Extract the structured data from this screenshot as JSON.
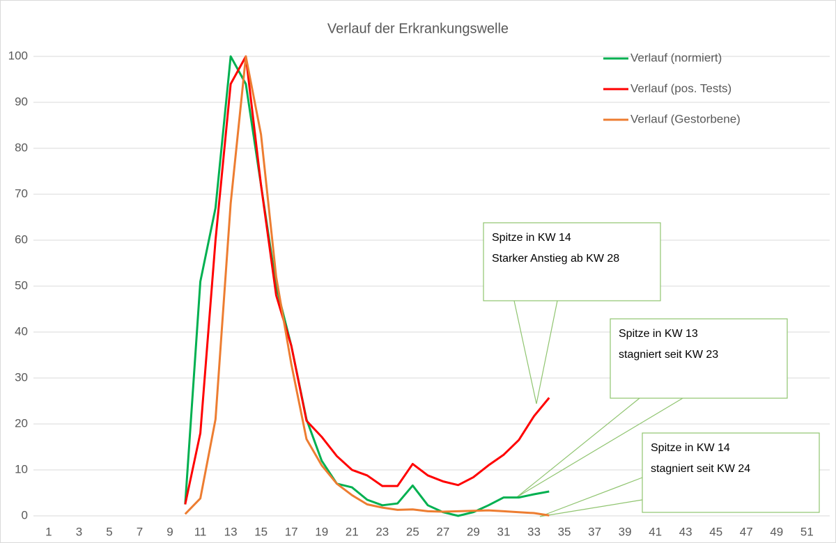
{
  "chart_data": {
    "type": "line",
    "title": "Verlauf der Erkrankungswelle",
    "x": [
      10,
      11,
      12,
      13,
      14,
      15,
      16,
      17,
      18,
      19,
      20,
      21,
      22,
      23,
      24,
      25,
      26,
      27,
      28,
      29,
      30,
      31,
      32,
      33,
      34
    ],
    "xlim": [
      0.5,
      52.5
    ],
    "xticks": [
      1,
      3,
      5,
      7,
      9,
      11,
      13,
      15,
      17,
      19,
      21,
      23,
      25,
      27,
      29,
      31,
      33,
      35,
      37,
      39,
      41,
      43,
      45,
      47,
      49,
      51
    ],
    "ylim": [
      0,
      100
    ],
    "yticks": [
      0,
      10,
      20,
      30,
      40,
      50,
      60,
      70,
      80,
      90,
      100
    ],
    "grid": true,
    "legend": "top-right",
    "series": [
      {
        "name": "Verlauf (normiert)",
        "color": "#00b050",
        "values": [
          2.5,
          51,
          67,
          100,
          94,
          72,
          50,
          37,
          21,
          12,
          7,
          6.2,
          3.5,
          2.3,
          2.7,
          6.6,
          2.3,
          0.8,
          0,
          0.8,
          2.3,
          4,
          4,
          4.7,
          5.3
        ]
      },
      {
        "name": "Verlauf (pos. Tests)",
        "color": "#ff0000",
        "values": [
          2.5,
          18,
          60,
          94,
          100,
          72,
          48,
          37,
          20.7,
          17.2,
          13,
          10,
          8.8,
          6.5,
          6.5,
          11.3,
          8.8,
          7.5,
          6.7,
          8.4,
          11,
          13.3,
          16.5,
          21.7,
          25.7
        ]
      },
      {
        "name": "Verlauf (Gestorbene)",
        "color": "#ed7d31",
        "values": [
          0.4,
          3.8,
          21,
          68,
          100,
          83,
          52,
          33,
          16.7,
          11,
          7,
          4.5,
          2.5,
          1.8,
          1.3,
          1.4,
          1,
          0.9,
          1,
          1.1,
          1.2,
          1,
          0.8,
          0.6,
          0.1
        ]
      }
    ],
    "annotations": [
      [
        "Spitze in KW 14",
        "Starker Anstieg ab KW 28"
      ],
      [
        "Spitze in KW 13",
        "stagniert seit KW 23"
      ],
      [
        "Spitze in KW 14",
        "stagniert seit KW 24"
      ]
    ]
  }
}
